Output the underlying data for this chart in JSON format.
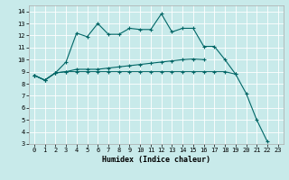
{
  "xlabel": "Humidex (Indice chaleur)",
  "background_color": "#c8eaea",
  "grid_color": "#ffffff",
  "line_color": "#006666",
  "xlim": [
    -0.5,
    23.5
  ],
  "ylim": [
    3,
    14.5
  ],
  "xticks": [
    0,
    1,
    2,
    3,
    4,
    5,
    6,
    7,
    8,
    9,
    10,
    11,
    12,
    13,
    14,
    15,
    16,
    17,
    18,
    19,
    20,
    21,
    22,
    23
  ],
  "yticks": [
    3,
    4,
    5,
    6,
    7,
    8,
    9,
    10,
    11,
    12,
    13,
    14
  ],
  "series1_y": [
    8.7,
    8.3,
    8.9,
    9.8,
    12.2,
    11.9,
    13.0,
    12.1,
    12.1,
    12.6,
    12.5,
    12.5,
    13.8,
    12.3,
    12.6,
    12.6,
    11.1,
    11.1,
    10.0,
    8.8,
    7.2,
    5.0,
    3.2,
    null
  ],
  "series2_y": [
    8.7,
    8.3,
    8.9,
    9.0,
    9.2,
    9.2,
    9.2,
    9.3,
    9.4,
    9.5,
    9.6,
    9.7,
    9.8,
    9.9,
    10.0,
    10.05,
    10.0,
    null,
    null,
    null,
    null,
    null,
    null,
    null
  ],
  "series3_y": [
    8.7,
    8.3,
    8.9,
    9.0,
    9.0,
    9.0,
    9.0,
    9.0,
    9.0,
    9.0,
    9.0,
    9.0,
    9.0,
    9.0,
    9.0,
    9.0,
    9.0,
    9.0,
    9.0,
    8.8,
    null,
    null,
    null,
    null
  ]
}
